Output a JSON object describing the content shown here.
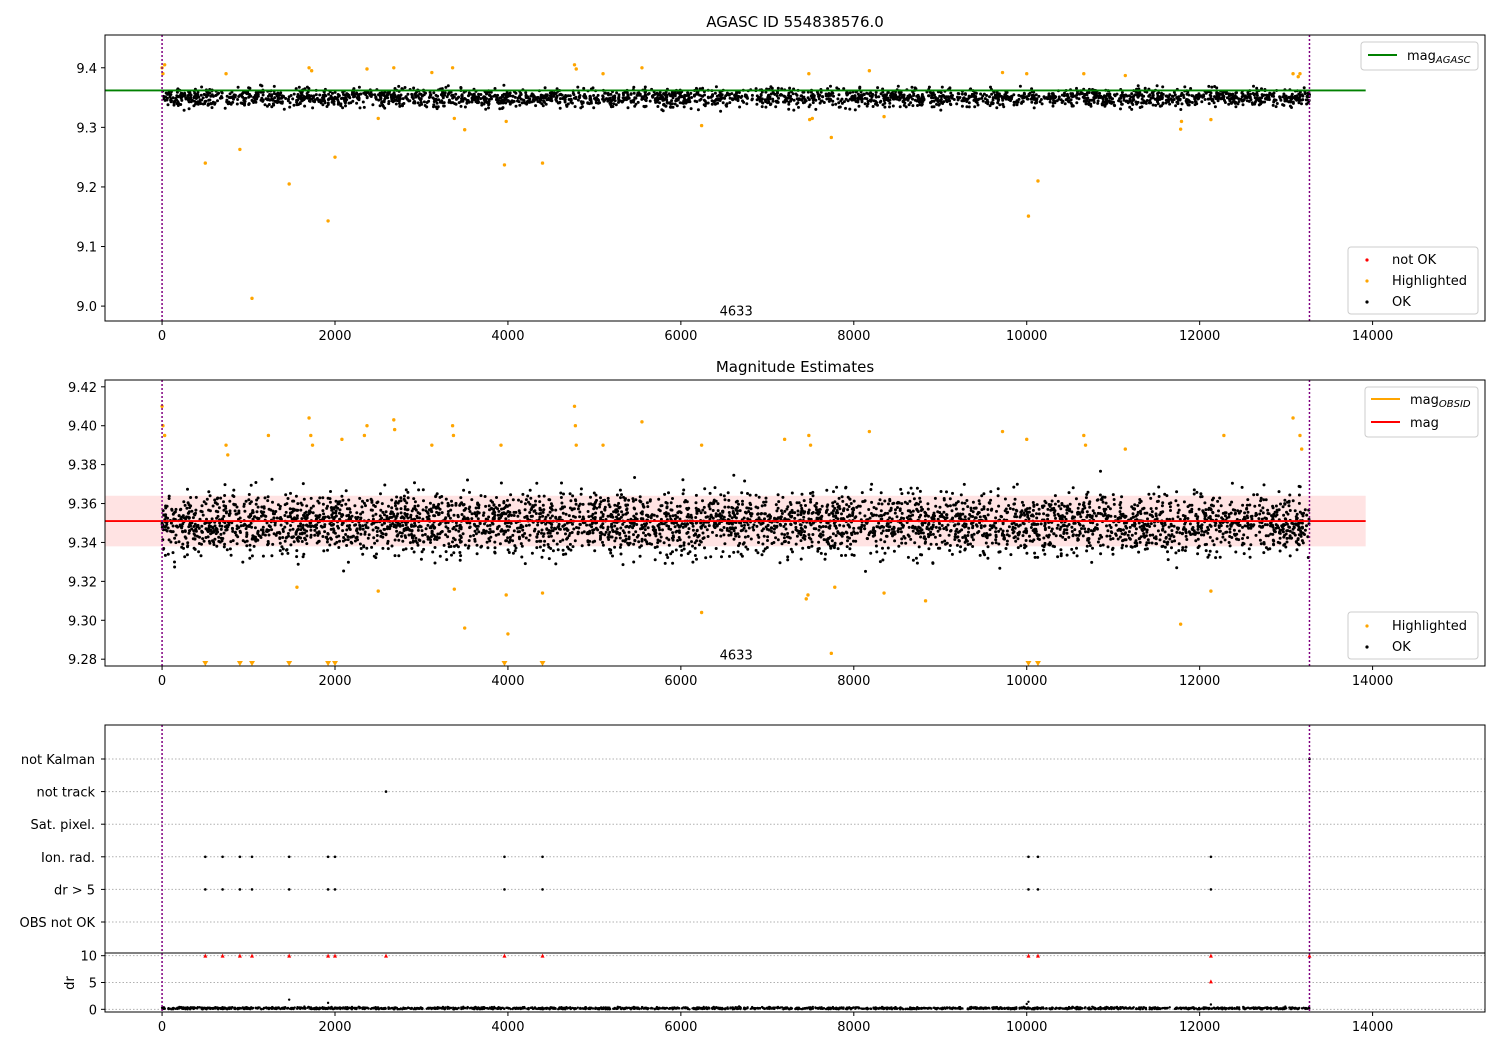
{
  "chart_data": [
    {
      "id": "top",
      "type": "scatter",
      "title": "AGASC ID 554838576.0",
      "xlim": [
        -660,
        15300
      ],
      "ylim": [
        8.975,
        9.455
      ],
      "xticks": [
        0,
        2000,
        4000,
        6000,
        8000,
        10000,
        12000,
        14000
      ],
      "yticks": [
        9.0,
        9.1,
        9.2,
        9.3,
        9.4
      ],
      "ytick_decimals": 1,
      "annotation": {
        "text": "4633",
        "x": 6640,
        "y": 8.993
      },
      "vlines": [
        0,
        13270
      ],
      "hline": {
        "label_main": "mag",
        "label_sub": "AGASC",
        "y": 9.362,
        "x": [
          -660,
          13920
        ],
        "color": "#008000"
      },
      "data_range": [
        0,
        13270
      ],
      "series": [
        {
          "name": "OK",
          "color": "#000000",
          "center": 9.35,
          "spread": 0.011,
          "count": 2600
        },
        {
          "name": "Highlighted",
          "color": "#ffa500",
          "points": [
            [
              0,
              9.4
            ],
            [
              10,
              9.39
            ],
            [
              30,
              9.405
            ],
            [
              500,
              9.24
            ],
            [
              900,
              9.263
            ],
            [
              1040,
              9.013
            ],
            [
              1470,
              9.205
            ],
            [
              1920,
              9.143
            ],
            [
              2000,
              9.25
            ],
            [
              3960,
              9.237
            ],
            [
              4400,
              9.24
            ],
            [
              6240,
              9.303
            ],
            [
              7740,
              9.283
            ],
            [
              10020,
              9.151
            ],
            [
              10130,
              9.21
            ],
            [
              11780,
              9.297
            ],
            [
              12130,
              9.313
            ],
            [
              13160,
              9.39
            ],
            [
              13140,
              9.385
            ],
            [
              740,
              9.39
            ],
            [
              1700,
              9.4
            ],
            [
              1730,
              9.395
            ],
            [
              2370,
              9.398
            ],
            [
              2680,
              9.4
            ],
            [
              3120,
              9.392
            ],
            [
              3360,
              9.4
            ],
            [
              4770,
              9.405
            ],
            [
              4790,
              9.398
            ],
            [
              5100,
              9.39
            ],
            [
              5550,
              9.4
            ],
            [
              7480,
              9.39
            ],
            [
              8180,
              9.395
            ],
            [
              9720,
              9.392
            ],
            [
              10000,
              9.39
            ],
            [
              10660,
              9.39
            ],
            [
              11140,
              9.387
            ],
            [
              13080,
              9.39
            ],
            [
              2500,
              9.315
            ],
            [
              3380,
              9.315
            ],
            [
              3500,
              9.296
            ],
            [
              3980,
              9.31
            ],
            [
              7520,
              9.315
            ],
            [
              8350,
              9.318
            ],
            [
              11790,
              9.31
            ],
            [
              7490,
              9.313
            ]
          ]
        },
        {
          "name": "not OK",
          "color": "#ff0000",
          "points": []
        }
      ],
      "legend_top": {
        "items": [
          {
            "label_main": "mag",
            "label_sub": "AGASC",
            "color": "#008000"
          }
        ]
      },
      "legend_bottom": {
        "items": [
          {
            "label": "not OK",
            "color": "#ff0000"
          },
          {
            "label": "Highlighted",
            "color": "#ffa500"
          },
          {
            "label": "OK",
            "color": "#000000"
          }
        ]
      }
    },
    {
      "id": "middle",
      "type": "scatter",
      "title": "Magnitude Estimates",
      "xlim": [
        -660,
        15300
      ],
      "ylim": [
        9.2765,
        9.4235
      ],
      "xticks": [
        0,
        2000,
        4000,
        6000,
        8000,
        10000,
        12000,
        14000
      ],
      "yticks": [
        9.28,
        9.3,
        9.32,
        9.34,
        9.36,
        9.38,
        9.4,
        9.42
      ],
      "ytick_decimals": 2,
      "annotation": {
        "text": "4633",
        "x": 6640,
        "y": 9.2825
      },
      "vlines": [
        0,
        13270
      ],
      "band": {
        "y": [
          9.338,
          9.364
        ],
        "x": [
          -660,
          13920
        ],
        "color": "#ffb0b0"
      },
      "hline": {
        "label": "mag",
        "y": 9.351,
        "x": [
          -660,
          13920
        ],
        "color": "#ff0000"
      },
      "obsid_segments": [],
      "data_range": [
        0,
        13270
      ],
      "series": [
        {
          "name": "OK",
          "color": "#000000",
          "center": 9.35,
          "spread": 0.011,
          "count": 4200
        },
        {
          "name": "Highlighted",
          "color": "#ffa500",
          "points": [
            [
              0,
              9.41
            ],
            [
              10,
              9.4
            ],
            [
              30,
              9.395
            ],
            [
              740,
              9.39
            ],
            [
              760,
              9.385
            ],
            [
              1230,
              9.395
            ],
            [
              1700,
              9.404
            ],
            [
              1720,
              9.395
            ],
            [
              1740,
              9.39
            ],
            [
              2080,
              9.393
            ],
            [
              2340,
              9.395
            ],
            [
              2370,
              9.4
            ],
            [
              2680,
              9.403
            ],
            [
              2690,
              9.398
            ],
            [
              3120,
              9.39
            ],
            [
              3360,
              9.4
            ],
            [
              3370,
              9.395
            ],
            [
              3920,
              9.39
            ],
            [
              4770,
              9.41
            ],
            [
              4780,
              9.4
            ],
            [
              4790,
              9.39
            ],
            [
              5100,
              9.39
            ],
            [
              5550,
              9.402
            ],
            [
              6240,
              9.39
            ],
            [
              7200,
              9.393
            ],
            [
              7480,
              9.395
            ],
            [
              7500,
              9.39
            ],
            [
              8180,
              9.397
            ],
            [
              9720,
              9.397
            ],
            [
              10000,
              9.393
            ],
            [
              10660,
              9.395
            ],
            [
              10680,
              9.39
            ],
            [
              11140,
              9.388
            ],
            [
              12280,
              9.395
            ],
            [
              13080,
              9.404
            ],
            [
              13160,
              9.395
            ],
            [
              13180,
              9.388
            ],
            [
              1560,
              9.317
            ],
            [
              2500,
              9.315
            ],
            [
              3380,
              9.316
            ],
            [
              3500,
              9.296
            ],
            [
              3980,
              9.313
            ],
            [
              4000,
              9.293
            ],
            [
              4400,
              9.314
            ],
            [
              6240,
              9.304
            ],
            [
              7450,
              9.311
            ],
            [
              7470,
              9.313
            ],
            [
              7740,
              9.283
            ],
            [
              7780,
              9.317
            ],
            [
              8350,
              9.314
            ],
            [
              8830,
              9.31
            ],
            [
              11780,
              9.298
            ],
            [
              12130,
              9.315
            ]
          ]
        },
        {
          "name": "triangles",
          "color": "#ffa500",
          "points": [
            [
              500,
              9.2775
            ],
            [
              900,
              9.2775
            ],
            [
              1040,
              9.2775
            ],
            [
              1470,
              9.2775
            ],
            [
              1920,
              9.2775
            ],
            [
              2000,
              9.2775
            ],
            [
              3960,
              9.2775
            ],
            [
              4400,
              9.2775
            ],
            [
              10020,
              9.2775
            ],
            [
              10130,
              9.2775
            ]
          ]
        }
      ],
      "legend_top": {
        "items": [
          {
            "label_main": "mag",
            "label_sub": "OBSID",
            "color": "#ffa500"
          },
          {
            "label": "mag",
            "color": "#ff0000"
          }
        ]
      },
      "legend_bottom": {
        "items": [
          {
            "label": "Highlighted",
            "color": "#ffa500"
          },
          {
            "label": "OK",
            "color": "#000000"
          }
        ]
      }
    },
    {
      "id": "flags",
      "type": "scatter",
      "title": "",
      "xlim": [
        -660,
        15300
      ],
      "categories": [
        "not Kalman",
        "not track",
        "Sat. pixel.",
        "Ion. rad.",
        "dr > 5",
        "OBS not OK"
      ],
      "vlines": [
        0,
        13270
      ],
      "flag_points": {
        "not Kalman": [
          13270
        ],
        "not track": [
          2590
        ],
        "Sat. pixel.": [],
        "Ion. rad.": [
          500,
          700,
          900,
          1040,
          1470,
          1920,
          2000,
          3960,
          4400,
          10020,
          10130,
          12130
        ],
        "dr > 5": [
          500,
          700,
          900,
          1040,
          1470,
          1920,
          2000,
          3960,
          4400,
          10020,
          10130,
          12130
        ],
        "OBS not OK": []
      }
    },
    {
      "id": "dr",
      "type": "scatter",
      "ylabel": "dr",
      "xlim": [
        -660,
        15300
      ],
      "ylim": [
        -0.5,
        10.5
      ],
      "xticks": [
        0,
        2000,
        4000,
        6000,
        8000,
        10000,
        12000,
        14000
      ],
      "yticks": [
        0,
        5,
        10
      ],
      "vlines": [
        0,
        13270
      ],
      "baseline": {
        "center": 0.2,
        "spread": 0.15,
        "count": 2000,
        "range": [
          0,
          13270
        ],
        "color": "#000000"
      },
      "extra_points": [
        [
          1470,
          1.8
        ],
        [
          1920,
          1.2
        ],
        [
          10000,
          1.0
        ],
        [
          10020,
          1.4
        ],
        [
          12130,
          0.9
        ]
      ],
      "capped": {
        "y": 10,
        "color": "#ff0000",
        "x": [
          500,
          700,
          900,
          1040,
          1470,
          1920,
          2000,
          2590,
          3960,
          4400,
          10020,
          10130,
          12130,
          13270
        ]
      },
      "capped_low": {
        "color": "#ff0000",
        "points": [
          [
            12130,
            5.2
          ]
        ]
      }
    }
  ]
}
